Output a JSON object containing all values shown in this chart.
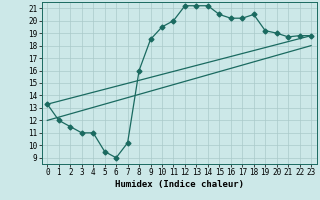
{
  "xlabel": "Humidex (Indice chaleur)",
  "bg_color": "#cce8e8",
  "grid_color": "#aacaca",
  "line_color": "#1a6a60",
  "xlim": [
    -0.5,
    23.5
  ],
  "ylim": [
    8.5,
    21.5
  ],
  "xticks": [
    0,
    1,
    2,
    3,
    4,
    5,
    6,
    7,
    8,
    9,
    10,
    11,
    12,
    13,
    14,
    15,
    16,
    17,
    18,
    19,
    20,
    21,
    22,
    23
  ],
  "yticks": [
    9,
    10,
    11,
    12,
    13,
    14,
    15,
    16,
    17,
    18,
    19,
    20,
    21
  ],
  "line1_x": [
    0,
    1,
    2,
    3,
    4,
    5,
    6,
    7,
    8,
    9,
    10,
    11,
    12,
    13,
    14,
    15,
    16,
    17,
    18,
    19,
    20,
    21,
    22,
    23
  ],
  "line1_y": [
    13.3,
    12.0,
    11.5,
    11.0,
    11.0,
    9.5,
    9.0,
    10.2,
    16.0,
    18.5,
    19.5,
    20.0,
    21.2,
    21.2,
    21.2,
    20.5,
    20.2,
    20.2,
    20.5,
    19.2,
    19.0,
    18.7,
    18.8,
    18.8
  ],
  "line2_x": [
    0,
    23
  ],
  "line2_y": [
    13.3,
    18.8
  ],
  "line3_x": [
    0,
    23
  ],
  "line3_y": [
    12.0,
    18.0
  ],
  "marker": "D",
  "markersize": 2.5,
  "linewidth": 0.9,
  "xlabel_fontsize": 6.5,
  "tick_fontsize": 5.5
}
